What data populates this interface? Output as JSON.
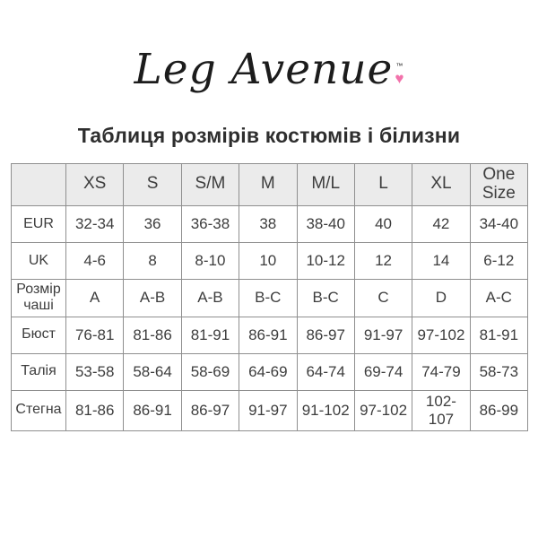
{
  "logo": {
    "text": "Leg Avenue",
    "tm": "™",
    "heart_icon": "♥",
    "heart_color": "#f272ab"
  },
  "title": "Таблиця розмірів костюмів і білизни",
  "table": {
    "corner": "",
    "columns": [
      "XS",
      "S",
      "S/M",
      "M",
      "M/L",
      "L",
      "XL",
      "One Size"
    ],
    "rows": [
      {
        "label": "EUR",
        "values": [
          "32-34",
          "36",
          "36-38",
          "38",
          "38-40",
          "40",
          "42",
          "34-40"
        ]
      },
      {
        "label": "UK",
        "values": [
          "4-6",
          "8",
          "8-10",
          "10",
          "10-12",
          "12",
          "14",
          "6-12"
        ]
      },
      {
        "label": "Розмір чаші",
        "values": [
          "A",
          "A-B",
          "A-B",
          "B-C",
          "B-C",
          "C",
          "D",
          "A-C"
        ]
      },
      {
        "label": "Бюст",
        "values": [
          "76-81",
          "81-86",
          "81-91",
          "86-91",
          "86-97",
          "91-97",
          "97-102",
          "81-91"
        ]
      },
      {
        "label": "Талія",
        "values": [
          "53-58",
          "58-64",
          "58-69",
          "64-69",
          "64-74",
          "69-74",
          "74-79",
          "58-73"
        ]
      },
      {
        "label": "Стегна",
        "values": [
          "81-86",
          "86-91",
          "86-97",
          "91-97",
          "91-102",
          "97-102",
          "102-107",
          "86-99"
        ]
      }
    ]
  },
  "colors": {
    "header_bg": "#ebebeb",
    "border": "#8f8f8f",
    "text": "#3d3d3d",
    "title_text": "#2e2e2e",
    "logo_text": "#1c1c1c"
  }
}
